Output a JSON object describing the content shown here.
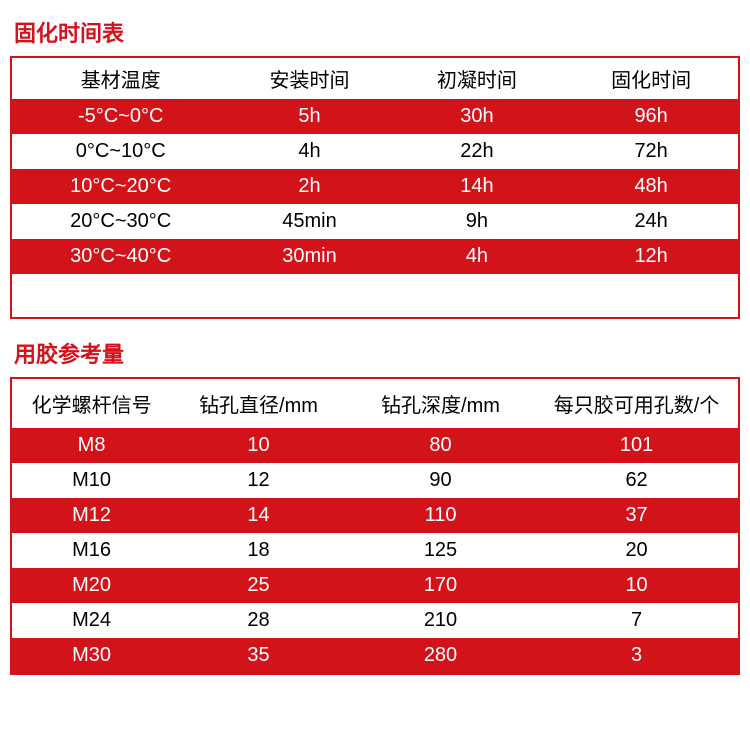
{
  "colors": {
    "title": "#d3131a",
    "border": "#d3131a",
    "red_bg": "#d3131a",
    "red_text": "#ffffff",
    "white_bg": "#ffffff",
    "black_text": "#000000"
  },
  "table1": {
    "title": "固化时间表",
    "headers": [
      "基材温度",
      "安装时间",
      "初凝时间",
      "固化时间"
    ],
    "col_widths_pct": [
      30,
      22,
      24,
      24
    ],
    "rows": [
      [
        "-5°C~0°C",
        "5h",
        "30h",
        "96h"
      ],
      [
        "0°C~10°C",
        "4h",
        "22h",
        "72h"
      ],
      [
        "10°C~20°C",
        "2h",
        "14h",
        "48h"
      ],
      [
        "20°C~30°C",
        "45min",
        "9h",
        "24h"
      ],
      [
        "30°C~40°C",
        "30min",
        "4h",
        "12h"
      ]
    ],
    "stripe_start": "red",
    "trailing_spacer": true
  },
  "table2": {
    "title": "用胶参考量",
    "headers": [
      "化学螺杆信号",
      "钻孔直径/mm",
      "钻孔深度/mm",
      "每只胶可用孔数/个"
    ],
    "col_widths_pct": [
      22,
      24,
      26,
      28
    ],
    "rows": [
      [
        "M8",
        "10",
        "80",
        "101"
      ],
      [
        "M10",
        "12",
        "90",
        "62"
      ],
      [
        "M12",
        "14",
        "110",
        "37"
      ],
      [
        "M16",
        "18",
        "125",
        "20"
      ],
      [
        "M20",
        "25",
        "170",
        "10"
      ],
      [
        "M24",
        "28",
        "210",
        "7"
      ],
      [
        "M30",
        "35",
        "280",
        "3"
      ]
    ],
    "stripe_start": "red",
    "trailing_spacer": false
  }
}
